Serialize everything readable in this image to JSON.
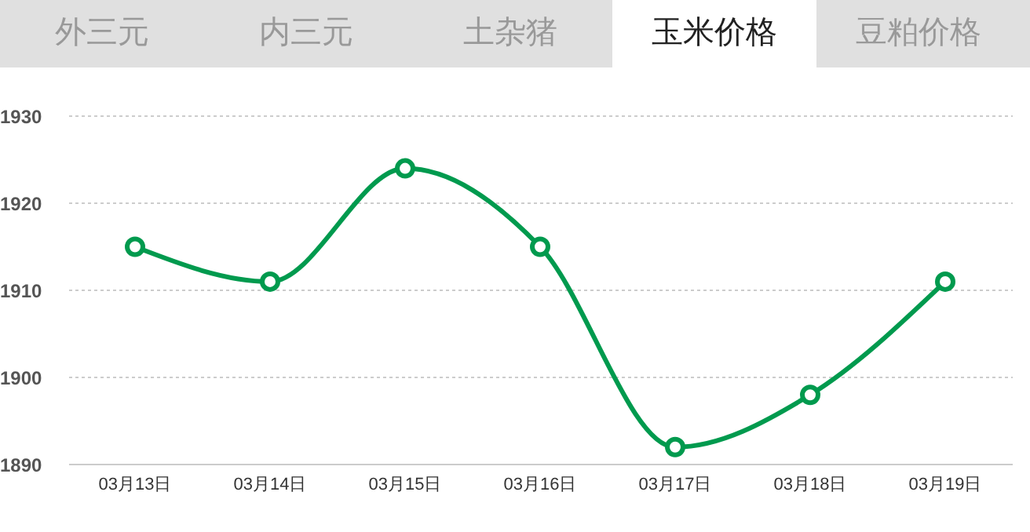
{
  "chart_data": {
    "type": "line",
    "annotations": [
      "外三元",
      "内三元",
      "土杂猪",
      "玉米价格",
      "豆粕价格"
    ],
    "categories": [
      "03月13日",
      "03月14日",
      "03月15日",
      "03月16日",
      "03月17日",
      "03月18日",
      "03月19日"
    ],
    "series": [
      {
        "color": "#009a4e",
        "values": [
          1915,
          1911,
          1924,
          1915,
          1892,
          1898,
          1911
        ]
      }
    ],
    "ylim": [
      1890,
      1930
    ],
    "yticks": [
      1890,
      1900,
      1910,
      1920,
      1930
    ],
    "grid": "y",
    "legend": false,
    "marker": "circle",
    "line_style": "solid"
  }
}
